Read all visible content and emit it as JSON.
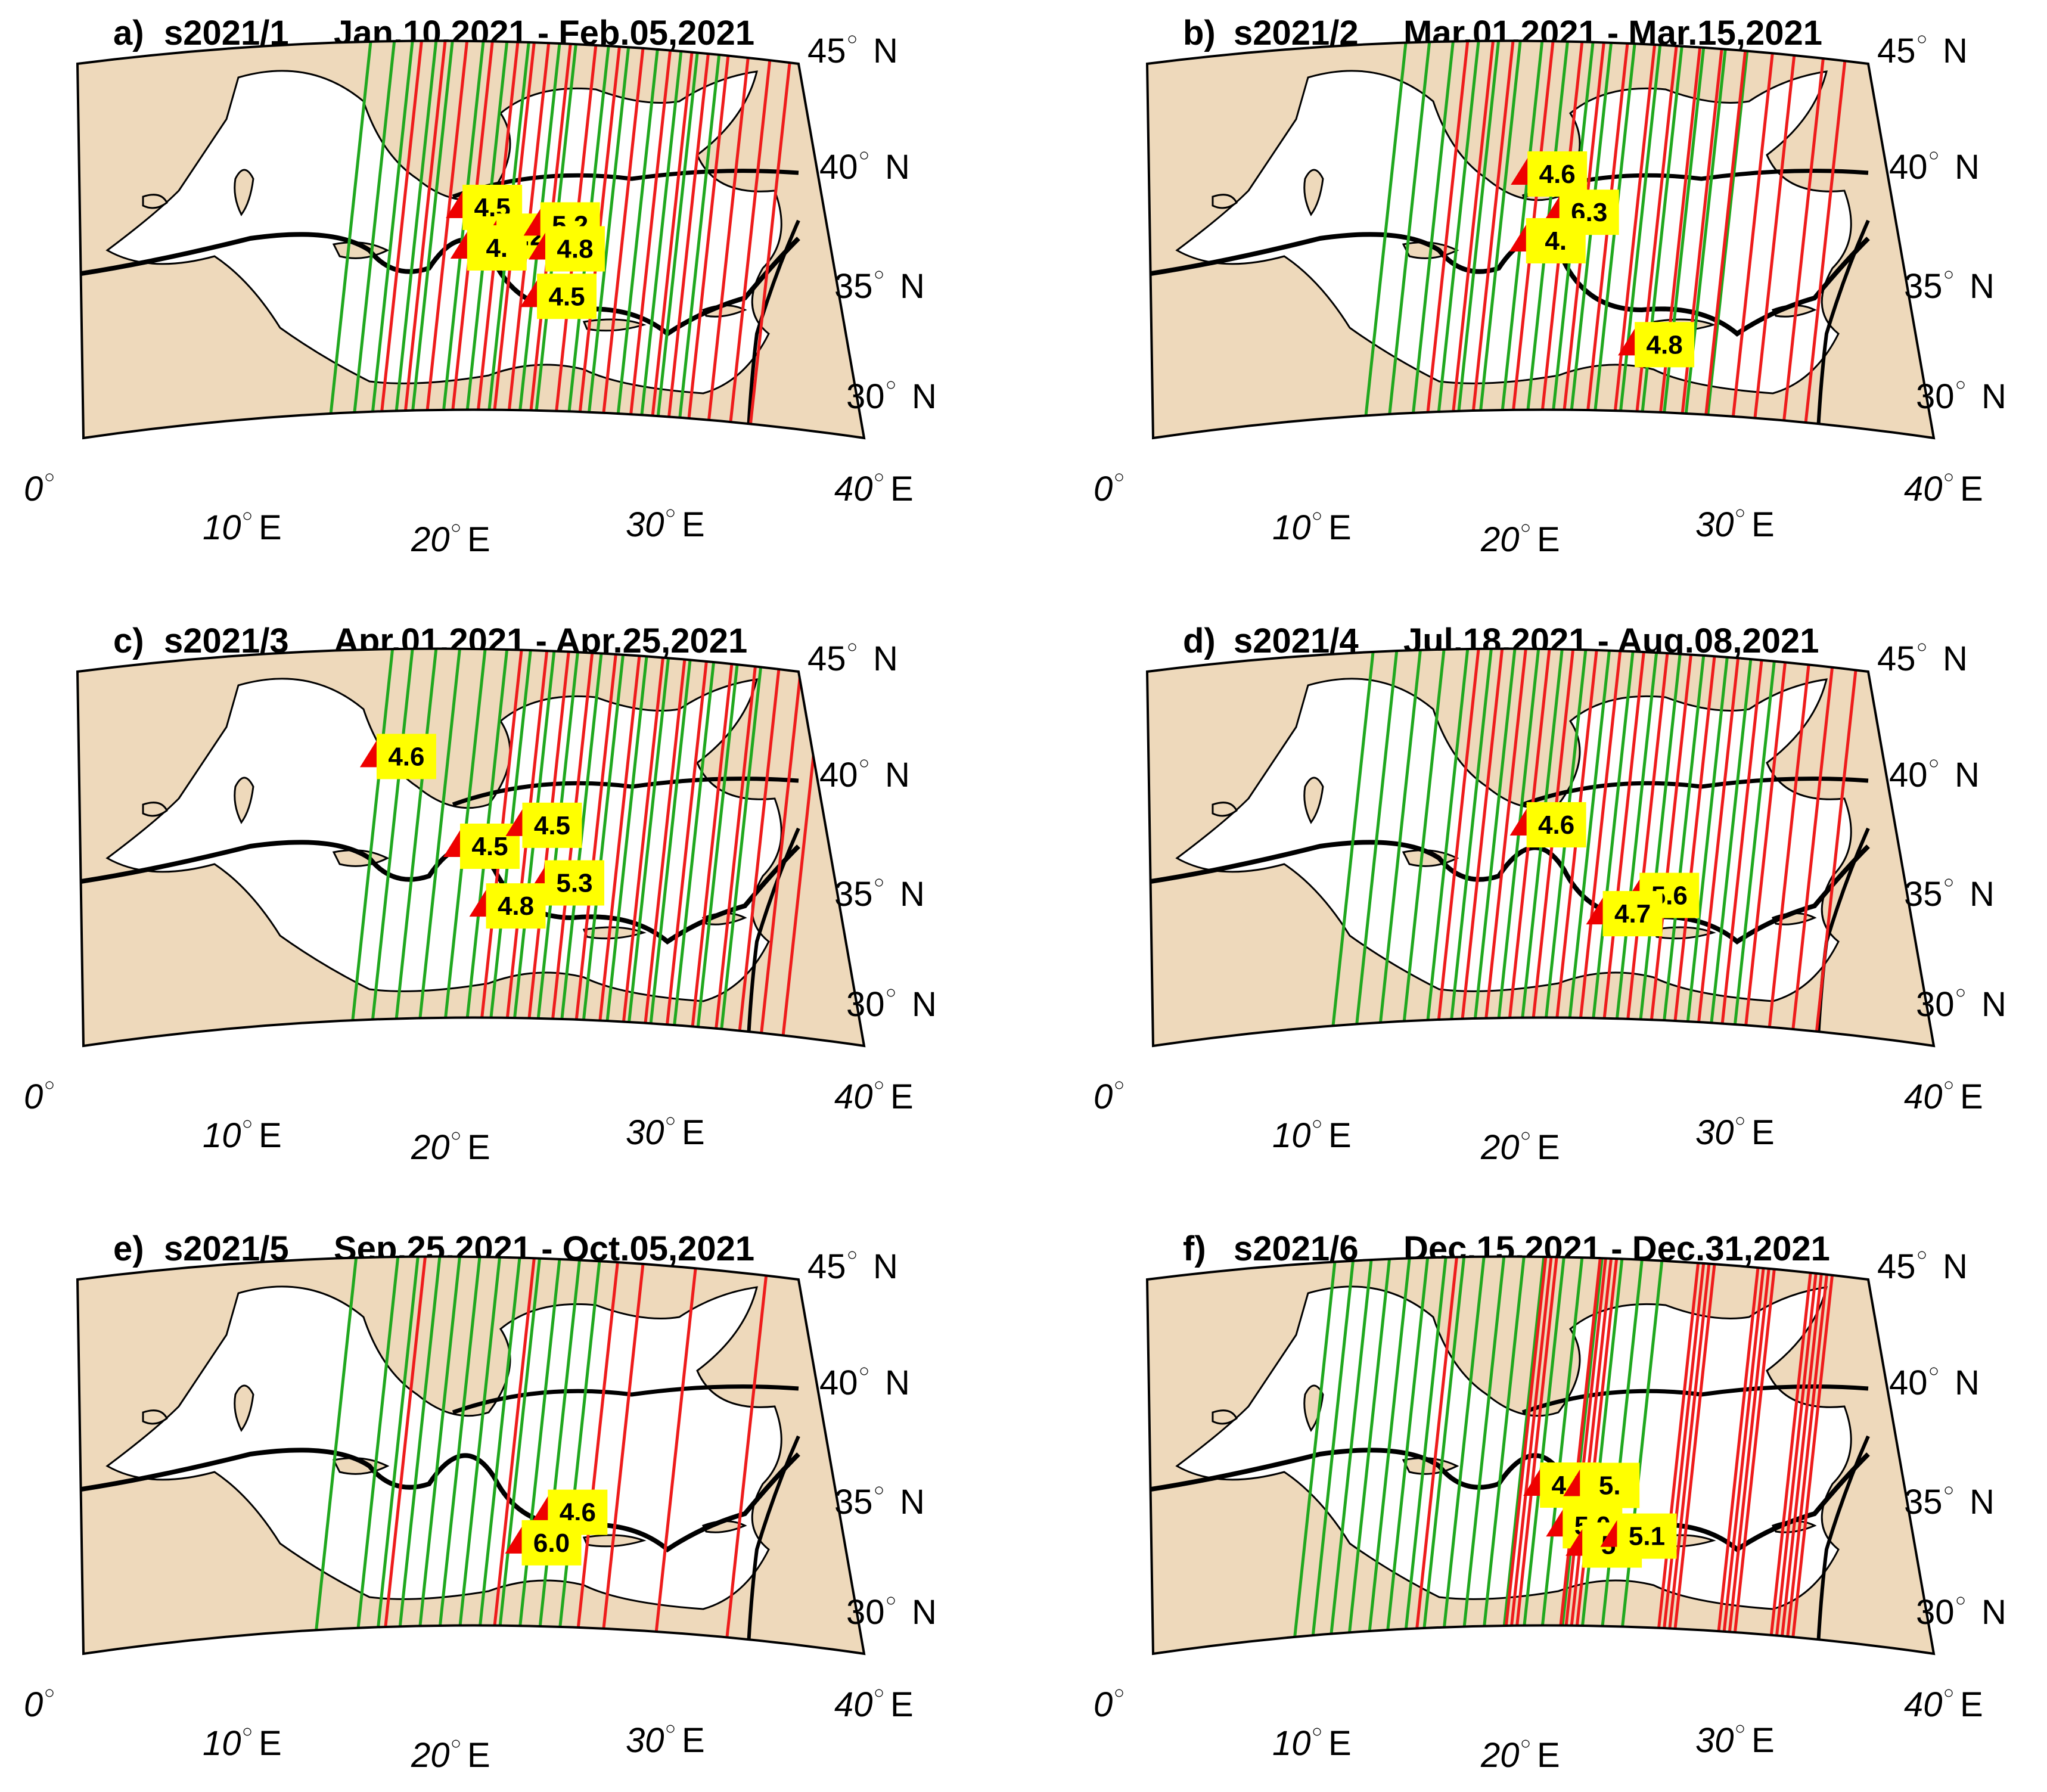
{
  "colors": {
    "land": "#eed9bb",
    "sea": "#ffffff",
    "plate_boundary": "#000000",
    "track_green": "#21a81f",
    "track_red": "#ee1c1c",
    "label_bg": "#ffff00",
    "marker": "#ee0000"
  },
  "axes": {
    "lon_ticks": [
      {
        "lon": 0,
        "number": "0",
        "unit": ""
      },
      {
        "lon": 10,
        "number": "10",
        "unit": "E"
      },
      {
        "lon": 20,
        "number": "20",
        "unit": "E"
      },
      {
        "lon": 30,
        "number": "30",
        "unit": "E"
      },
      {
        "lon": 40,
        "number": "40",
        "unit": "E"
      }
    ],
    "lat_ticks": [
      {
        "lat": 45,
        "number": "45",
        "unit": "N"
      },
      {
        "lat": 40,
        "number": "40",
        "unit": "N"
      },
      {
        "lat": 35,
        "number": "35",
        "unit": "N"
      },
      {
        "lat": 30,
        "number": "30",
        "unit": "N"
      }
    ],
    "degree_symbol": "○"
  },
  "panels": [
    {
      "letter": "a)",
      "code": "s2021/1",
      "period": "Jan.10,2021 - Feb.05,2021",
      "green_tracks": [
        14.1,
        15.4,
        16.4,
        17.7,
        18.6,
        20.3,
        21.6,
        22.8,
        24.5,
        25.4,
        27.2,
        28.3,
        29.9,
        31.2,
        32.1,
        33.3
      ],
      "red_tracks": [
        16.9,
        18.2,
        19.4,
        20.8,
        22.2,
        23.1,
        23.9,
        25.1,
        26.5,
        27.8,
        29.1,
        30.6,
        31.8,
        32.7,
        33.8,
        34.9,
        36.1,
        37.2
      ],
      "events": [
        {
          "mag": "4.5",
          "lon": 19.9,
          "lat": 38.3
        },
        {
          "mag": "5.2",
          "lon": 21.8,
          "lat": 37.1
        },
        {
          "mag": "4.",
          "lon": 20.2,
          "lat": 36.6
        },
        {
          "mag": "5.2",
          "lon": 24.2,
          "lat": 37.6
        },
        {
          "mag": "4.8",
          "lon": 24.5,
          "lat": 36.6
        },
        {
          "mag": "4.5",
          "lon": 24.1,
          "lat": 34.6
        }
      ]
    },
    {
      "letter": "b)",
      "code": "s2021/2",
      "period": "Mar.01,2021 - Mar.15,2021",
      "green_tracks": [
        12.2,
        13.5,
        14.8,
        16.2,
        17.3,
        18.5,
        19.7,
        21.1,
        22.5,
        23.5,
        24.8,
        26.2,
        27.4,
        28.6,
        29.8,
        31.0
      ],
      "red_tracks": [
        15.6,
        17.0,
        18.1,
        20.3,
        21.9,
        23.1,
        24.4,
        25.9,
        27.1,
        28.4,
        29.6,
        30.9,
        32.4,
        33.6,
        35.2,
        36.4
      ],
      "events": [
        {
          "mag": "4.6",
          "lon": 19.6,
          "lat": 39.7
        },
        {
          "mag": "6.3",
          "lon": 21.4,
          "lat": 38.1
        },
        {
          "mag": "4.",
          "lon": 19.6,
          "lat": 36.9
        },
        {
          "mag": "4.8",
          "lon": 25.7,
          "lat": 32.6
        }
      ]
    },
    {
      "letter": "c)",
      "code": "s2021/3",
      "period": "Apr.01,2021 - Apr.25,2021",
      "green_tracks": [
        15.3,
        16.4,
        17.7,
        19.0,
        20.4,
        21.6,
        22.9,
        24.2,
        25.5,
        26.8,
        28.0,
        29.3,
        30.5,
        31.7,
        33.0,
        34.3,
        35.6
      ],
      "red_tracks": [
        22.4,
        23.8,
        25.0,
        26.3,
        27.6,
        28.9,
        30.2,
        31.4,
        32.6,
        34.0,
        35.3,
        36.6,
        37.8,
        39.0
      ],
      "events": [
        {
          "mag": "4.6",
          "lon": 15.1,
          "lat": 40.8
        },
        {
          "mag": "4.5",
          "lon": 19.8,
          "lat": 37.0
        },
        {
          "mag": "4.5",
          "lon": 23.2,
          "lat": 37.9
        },
        {
          "mag": "5.3",
          "lon": 24.5,
          "lat": 35.5
        },
        {
          "mag": "4.8",
          "lon": 21.3,
          "lat": 34.5
        }
      ]
    },
    {
      "letter": "d)",
      "code": "s2021/4",
      "period": "Jul.18,2021 - Aug.08,2021",
      "green_tracks": [
        10.4,
        11.7,
        13.0,
        14.3,
        15.6,
        16.9,
        18.2,
        19.5,
        20.8,
        22.1,
        23.4,
        24.7,
        26.0,
        27.3,
        28.6,
        29.9,
        31.2,
        32.5
      ],
      "red_tracks": [
        16.2,
        17.5,
        18.8,
        20.1,
        21.4,
        22.7,
        24.0,
        25.3,
        26.6,
        27.9,
        29.2,
        30.5,
        31.8,
        33.1,
        34.4,
        35.7,
        37.0
      ],
      "events": [
        {
          "mag": "4.6",
          "lon": 19.6,
          "lat": 37.9
        },
        {
          "mag": "5.6",
          "lon": 25.9,
          "lat": 35.0
        },
        {
          "mag": "4.7",
          "lon": 23.9,
          "lat": 34.2
        }
      ]
    },
    {
      "letter": "e)",
      "code": "s2021/5",
      "period": "Sep.25,2021 - Oct.05,2021",
      "green_tracks": [
        13.3,
        15.6,
        16.7,
        17.9,
        19.0,
        20.1,
        21.2,
        22.3,
        23.4,
        24.5,
        25.6,
        26.7
      ],
      "red_tracks": [
        17.1,
        23.1,
        27.7,
        29.1,
        32.0,
        35.9
      ],
      "events": [
        {
          "mag": "4.6",
          "lon": 24.7,
          "lat": 34.6
        },
        {
          "mag": "6.0",
          "lon": 23.3,
          "lat": 33.3
        }
      ]
    },
    {
      "letter": "f)",
      "code": "s2021/6",
      "period": "Dec.15,2021 - Dec.31,2021",
      "green_tracks": [
        8.3,
        9.3,
        10.3,
        11.3,
        12.4,
        13.4,
        14.4,
        15.4,
        16.5,
        17.6,
        18.7,
        19.8,
        20.9,
        21.9,
        23.0,
        24.1,
        25.2,
        26.3
      ],
      "red_tracks": [
        15.0,
        19.9,
        20.2,
        20.5,
        22.9,
        23.2,
        23.5,
        23.8,
        28.3,
        28.6,
        28.9,
        29.2,
        31.6,
        31.9,
        32.2,
        32.5,
        34.5,
        34.8,
        35.1,
        35.4,
        35.7
      ],
      "events": [
        {
          "mag": "4.5",
          "lon": 20.4,
          "lat": 35.7
        },
        {
          "mag": "5.",
          "lon": 22.6,
          "lat": 35.7
        },
        {
          "mag": "5.0",
          "lon": 21.7,
          "lat": 34.0
        },
        {
          "mag": "5.",
          "lon": 22.8,
          "lat": 33.2
        },
        {
          "mag": "5.1",
          "lon": 24.7,
          "lat": 33.6
        }
      ]
    }
  ]
}
